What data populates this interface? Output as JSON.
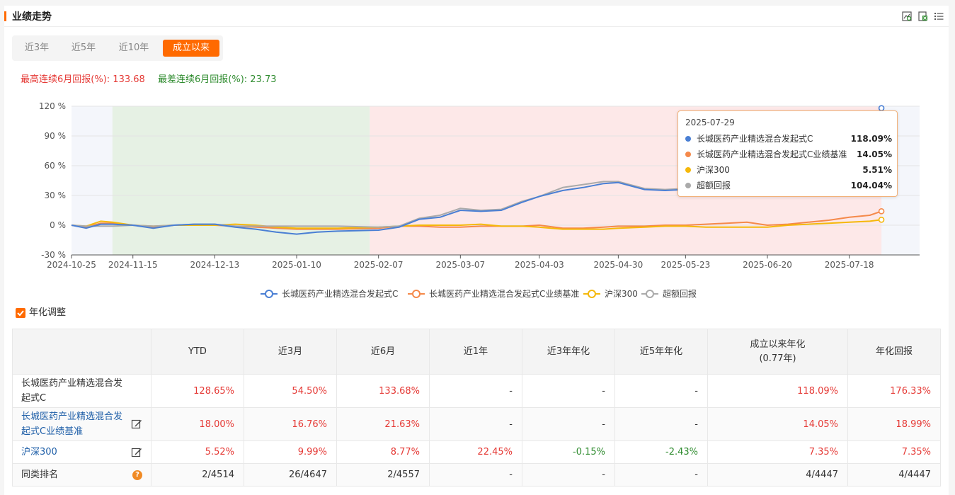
{
  "header": {
    "title": "业绩走势",
    "icons": [
      "zoom-chart-icon",
      "export-excel-icon",
      "list-menu-icon"
    ]
  },
  "tabs": [
    {
      "label": "近3年",
      "active": false
    },
    {
      "label": "近5年",
      "active": false
    },
    {
      "label": "近10年",
      "active": false
    },
    {
      "label": "成立以来",
      "active": true
    }
  ],
  "streak": {
    "best_label": "最高连续6月回报(%):",
    "best_value": "133.68",
    "worst_label": "最差连续6月回报(%):",
    "worst_value": "23.73"
  },
  "chart_data": {
    "type": "line",
    "ylim": [
      -30,
      120
    ],
    "yticks": [
      "120 %",
      "90 %",
      "60 %",
      "30 %",
      "0 %",
      "-30 %"
    ],
    "ytick_values": [
      120,
      90,
      60,
      30,
      0,
      -30
    ],
    "xticks": [
      "2024-10-25",
      "2024-11-15",
      "2024-12-13",
      "2025-01-10",
      "2025-02-07",
      "2025-03-07",
      "2025-04-03",
      "2025-04-30",
      "2025-05-23",
      "2025-06-20",
      "2025-07-18"
    ],
    "x": [
      "2024-10-25",
      "2024-10-30",
      "2024-11-04",
      "2024-11-08",
      "2024-11-15",
      "2024-11-22",
      "2024-11-29",
      "2024-12-06",
      "2024-12-13",
      "2024-12-20",
      "2024-12-27",
      "2025-01-03",
      "2025-01-10",
      "2025-01-17",
      "2025-01-24",
      "2025-02-07",
      "2025-02-14",
      "2025-02-21",
      "2025-02-28",
      "2025-03-07",
      "2025-03-14",
      "2025-03-21",
      "2025-03-28",
      "2025-04-03",
      "2025-04-11",
      "2025-04-18",
      "2025-04-25",
      "2025-04-30",
      "2025-05-09",
      "2025-05-16",
      "2025-05-23",
      "2025-05-30",
      "2025-06-06",
      "2025-06-13",
      "2025-06-20",
      "2025-06-27",
      "2025-07-04",
      "2025-07-11",
      "2025-07-18",
      "2025-07-25",
      "2025-07-29"
    ],
    "series": [
      {
        "name": "长城医药产业精选混合发起式C",
        "color": "#4a7fd4",
        "values": [
          0,
          -3,
          1,
          1,
          0,
          -3,
          0,
          1,
          1,
          -2,
          -4,
          -7,
          -9,
          -7,
          -6,
          -5,
          -2,
          6,
          8,
          15,
          14,
          15,
          23,
          29,
          35,
          38,
          42,
          43,
          36,
          35,
          36,
          40,
          50,
          60,
          66,
          68,
          78,
          85,
          97,
          100,
          118.09
        ]
      },
      {
        "name": "长城医药产业精选混合发起式C业绩基准",
        "color": "#f5894a",
        "values": [
          0,
          -2,
          2,
          2,
          0,
          -2,
          0,
          0,
          0,
          -1,
          -2,
          -3,
          -4,
          -4,
          -4,
          -3,
          -1,
          -1,
          -2,
          -2,
          -1,
          -1,
          -1,
          0,
          -3,
          -3,
          -2,
          -1,
          -1,
          0,
          0,
          1,
          2,
          3,
          0,
          1,
          3,
          5,
          8,
          10,
          14.05
        ]
      },
      {
        "name": "沪深300",
        "color": "#f5b80a",
        "values": [
          0,
          -1,
          4,
          3,
          0,
          -1,
          0,
          0,
          0,
          1,
          0,
          -2,
          -3,
          -3,
          -3,
          -2,
          -1,
          0,
          0,
          0,
          1,
          -1,
          -1,
          -2,
          -4,
          -4,
          -4,
          -3,
          -2,
          -1,
          -1,
          -2,
          -2,
          -2,
          -2,
          0,
          1,
          2,
          3,
          4,
          5.51
        ]
      },
      {
        "name": "超额回报",
        "color": "#aaaaaa",
        "values": [
          0,
          -1,
          -1,
          -1,
          0,
          -1,
          0,
          1,
          1,
          -1,
          -1,
          -1,
          -1,
          -1,
          -1,
          -2,
          -1,
          7,
          10,
          17,
          15,
          16,
          24,
          29,
          38,
          41,
          44,
          44,
          37,
          36,
          37,
          39,
          48,
          57,
          61,
          61,
          70,
          78,
          88,
          87,
          104.04
        ]
      }
    ],
    "regions": [
      {
        "from": "2024-11-08",
        "to": "2025-02-04",
        "color": "#e6f1e4"
      },
      {
        "from": "2025-02-04",
        "to": "2025-07-29",
        "color": "#fde8e8"
      }
    ],
    "legend_position": "bottom"
  },
  "tooltip": {
    "date": "2025-07-29",
    "rows": [
      {
        "name": "长城医药产业精选混合发起式C",
        "value": "118.09%",
        "color": "#4a7fd4"
      },
      {
        "name": "长城医药产业精选混合发起式C业绩基准",
        "value": "14.05%",
        "color": "#f5894a"
      },
      {
        "name": "沪深300",
        "value": "5.51%",
        "color": "#f5b80a"
      },
      {
        "name": "超额回报",
        "value": "104.04%",
        "color": "#aaaaaa"
      }
    ]
  },
  "annualize": {
    "label": "年化调整",
    "checked": true
  },
  "table": {
    "headers": [
      "YTD",
      "近3月",
      "近6月",
      "近1年",
      "近3年年化",
      "近5年年化",
      "成立以来年化",
      "年化回报"
    ],
    "header_sub": "(0.77年)",
    "rows": [
      {
        "name": "长城医药产业精选混合发起式C",
        "values": [
          "128.65%",
          "54.50%",
          "133.68%",
          "-",
          "-",
          "-",
          "118.09%",
          "176.33%"
        ],
        "colors": [
          "red",
          "red",
          "red",
          "dark",
          "dark",
          "dark",
          "red",
          "red"
        ]
      },
      {
        "name": "长城医药产业精选混合发起式C业绩基准",
        "values": [
          "18.00%",
          "16.76%",
          "21.63%",
          "-",
          "-",
          "-",
          "14.05%",
          "18.99%"
        ],
        "colors": [
          "red",
          "red",
          "red",
          "dark",
          "dark",
          "dark",
          "red",
          "red"
        ]
      },
      {
        "name": "沪深300",
        "values": [
          "5.52%",
          "9.99%",
          "8.77%",
          "22.45%",
          "-0.15%",
          "-2.43%",
          "7.35%",
          "7.35%"
        ],
        "colors": [
          "red",
          "red",
          "red",
          "red",
          "green",
          "green",
          "red",
          "red"
        ]
      },
      {
        "name": "同类排名",
        "values": [
          "2/4514",
          "26/4647",
          "2/4557",
          "-",
          "-",
          "-",
          "4/4447",
          "4/4447"
        ],
        "colors": [
          "dark",
          "dark",
          "dark",
          "dark",
          "dark",
          "dark",
          "dark",
          "dark"
        ]
      }
    ]
  }
}
